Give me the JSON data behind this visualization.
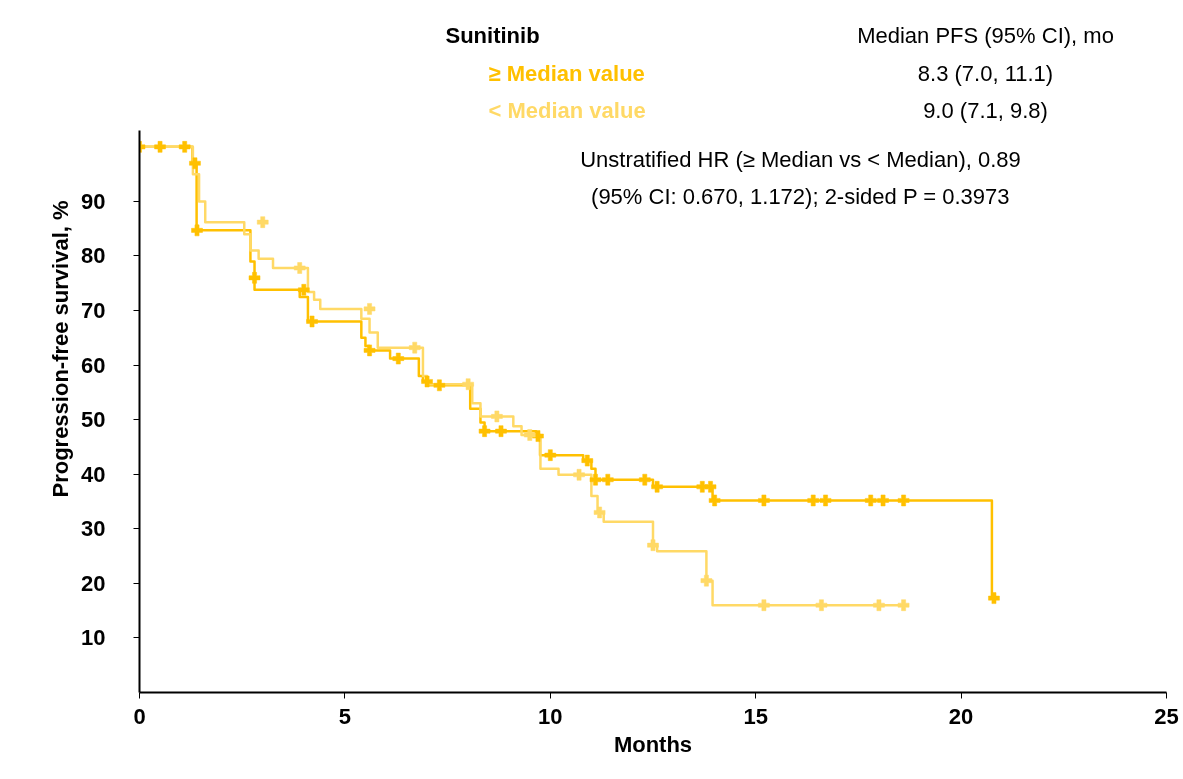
{
  "chart_data": {
    "type": "step",
    "xlabel": "Months",
    "ylabel": "Progression-free survival, %",
    "legend_title": "Sunitinib",
    "legend": "top",
    "grid": false,
    "line_style": "solid",
    "xlim": [
      0,
      25
    ],
    "xticks": [
      0,
      5,
      10,
      15,
      20,
      25
    ],
    "ylim": [
      0,
      103
    ],
    "yticks": [
      10,
      20,
      30,
      40,
      50,
      60,
      70,
      80,
      90
    ],
    "annotations": [
      "Median PFS (95% CI), mo",
      "8.3 (7.0, 11.1)",
      "9.0 (7.1, 9.8)",
      "Unstratified HR (≥ Median vs < Median), 0.89",
      "(95% CI: 0.670, 1.172); 2-sided P = 0.3973"
    ],
    "series": [
      {
        "name": "≥ Median value",
        "color": "#ffc000",
        "x": [
          0,
          1.29,
          1.39,
          2.7,
          2.8,
          3.9,
          4.1,
          5.4,
          5.5,
          5.6,
          6.1,
          6.8,
          6.9,
          7.0,
          8.05,
          8.3,
          8.4,
          9.65,
          9.75,
          10.8,
          11.0,
          11.1,
          12.5,
          13.95,
          20.75,
          20.8
        ],
        "values": [
          100,
          97,
          84.7,
          79,
          73.8,
          72.5,
          68,
          65,
          63.5,
          62.7,
          61.2,
          58,
          57,
          56.3,
          52,
          49.5,
          47.9,
          47,
          43.5,
          42.5,
          41,
          39,
          37.7,
          35.2,
          17.3,
          17.3
        ]
      },
      {
        "name": "< Median value",
        "color": "#ffd966",
        "x": [
          0,
          1.3,
          1.45,
          1.6,
          2.55,
          2.7,
          2.9,
          3.25,
          4.1,
          4.25,
          4.4,
          5.4,
          5.6,
          5.8,
          6.9,
          7.0,
          8.1,
          8.3,
          9.1,
          9.3,
          9.76,
          10.2,
          11.0,
          11.15,
          11.3,
          12.5,
          12.6,
          13.8,
          13.95,
          18.6
        ],
        "values": [
          100,
          95,
          90,
          86.2,
          84,
          81,
          79.5,
          77.8,
          73.4,
          72,
          70.3,
          68.5,
          66,
          63.2,
          58,
          56.5,
          53,
          50.6,
          48.8,
          47.2,
          41,
          39.9,
          36,
          33,
          31.3,
          27,
          25.9,
          20.5,
          16,
          16
        ]
      },
      {
        "type": "scatter",
        "marker": "cross",
        "color": "#ffc000",
        "x": [
          0,
          0.5,
          1.1,
          1.35,
          1.4,
          2.8,
          4.0,
          4.2,
          5.6,
          6.3,
          7.0,
          7.3,
          8.4,
          8.8,
          9.7,
          10.0,
          10.9,
          11.1,
          11.4,
          12.3,
          12.6,
          13.7,
          13.9,
          14.0,
          15.2,
          16.4,
          16.7,
          17.8,
          18.1,
          18.6,
          20.8
        ],
        "values": [
          100,
          100,
          100,
          97,
          84.7,
          76,
          73.8,
          68,
          62.7,
          61.2,
          57,
          56.3,
          47.9,
          47.9,
          47,
          43.5,
          42.5,
          39,
          39,
          39,
          37.7,
          37.7,
          37.7,
          35.2,
          35.2,
          35.2,
          35.2,
          35.2,
          35.2,
          35.2,
          17.3
        ]
      },
      {
        "type": "scatter",
        "marker": "cross",
        "color": "#ffd966",
        "x": [
          3.0,
          3.9,
          5.6,
          6.7,
          8.0,
          8.7,
          9.5,
          10.7,
          11.2,
          12.5,
          13.8,
          15.2,
          16.6,
          18.0,
          18.6
        ],
        "values": [
          86.2,
          77.8,
          70.3,
          63.2,
          56.5,
          50.6,
          47.2,
          39.9,
          33,
          27,
          20.5,
          16,
          16,
          16,
          16
        ]
      }
    ]
  }
}
